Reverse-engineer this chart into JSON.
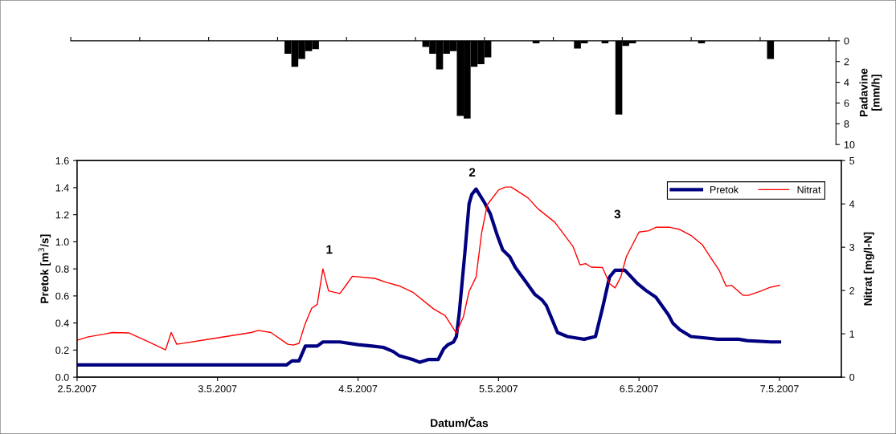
{
  "chart_data": [
    {
      "type": "bar",
      "ylabel": "Padavine\n[mm/h]",
      "color": "#000000",
      "tick_labels": "y",
      "grid": false,
      "legend": false,
      "categories": [
        null,
        null,
        null,
        null,
        null,
        null,
        null,
        null,
        null,
        null,
        null,
        null,
        null,
        null,
        null,
        null,
        null,
        null,
        null,
        null,
        null,
        null,
        null,
        null,
        null,
        null,
        null,
        null,
        null,
        null,
        null,
        null,
        null,
        null,
        null,
        null,
        null,
        null,
        null,
        null,
        null,
        null,
        null,
        null,
        null,
        null,
        null,
        null,
        null,
        null,
        null,
        null,
        null,
        null,
        null,
        null,
        null,
        null,
        null,
        null,
        null,
        null,
        null,
        null,
        null,
        null,
        null,
        null,
        null,
        null,
        null,
        null,
        null,
        null,
        null,
        null,
        null,
        null,
        null,
        null,
        null,
        null,
        null,
        null,
        null,
        null,
        null,
        null,
        null,
        null,
        null,
        null,
        null,
        null,
        null,
        null,
        null,
        null,
        null,
        null,
        null,
        null,
        null,
        null,
        null,
        null,
        null,
        null,
        null,
        null,
        null
      ],
      "values": [
        0,
        0,
        0,
        0,
        0,
        0,
        0,
        0,
        0,
        0,
        0,
        0,
        0,
        0,
        0,
        0,
        0,
        0,
        0,
        0,
        0,
        0,
        0,
        0,
        0,
        0,
        0,
        0,
        0,
        0,
        0,
        1.25,
        2.5,
        1.75,
        1.0,
        0.8,
        0,
        0,
        0,
        0,
        0,
        0,
        0,
        0,
        0,
        0,
        0,
        0,
        0,
        0,
        0,
        0.6,
        1.25,
        2.75,
        1.25,
        1.0,
        7.25,
        7.5,
        2.5,
        2.25,
        1.6,
        0,
        0,
        0,
        0,
        0,
        0,
        0.25,
        0,
        0,
        0,
        0,
        0,
        0.75,
        0.25,
        0,
        0,
        0.25,
        0,
        7.1,
        0.5,
        0.25,
        0,
        0,
        0,
        0,
        0,
        0,
        0,
        0,
        0,
        0.25,
        0,
        0,
        0,
        0,
        0,
        0,
        0,
        0,
        0,
        1.75,
        0,
        0,
        0,
        0,
        0,
        0,
        0,
        0,
        0
      ],
      "ylim": [
        10,
        0
      ],
      "yticks": [
        0,
        2,
        4,
        6,
        8,
        10
      ]
    },
    {
      "type": "line",
      "xlabel": "Datum/Čas",
      "ylabel": "Pretok [m$^{3}$/s]",
      "y2label": "Nitrat [mg/l-N]",
      "grid": false,
      "legend": "top right",
      "marker": "none",
      "line_style": "solid",
      "xlim": [
        "2007-05-02T00:00",
        "2007-05-07T10:34"
      ],
      "xticks": [
        {
          "value": "2007-05-02",
          "label": "2.5.2007"
        },
        {
          "value": "2007-05-03",
          "label": "3.5.2007"
        },
        {
          "value": "2007-05-04",
          "label": "4.5.2007"
        },
        {
          "value": "2007-05-05",
          "label": "5.5.2007"
        },
        {
          "value": "2007-05-06",
          "label": "6.5.2007"
        },
        {
          "value": "2007-05-07",
          "label": "7.5.2007"
        }
      ],
      "ylim": [
        0,
        1.6
      ],
      "yticks": [
        {
          "value": 0,
          "label": "0.0"
        },
        {
          "value": 0.2,
          "label": "0.2"
        },
        {
          "value": 0.4,
          "label": "0.4"
        },
        {
          "value": 0.6,
          "label": "0.6"
        },
        {
          "value": 0.8,
          "label": "0.8"
        },
        {
          "value": 1.0,
          "label": "1.0"
        },
        {
          "value": 1.2,
          "label": "1.2"
        },
        {
          "value": 1.4,
          "label": "1.4"
        },
        {
          "value": 1.6,
          "label": "1.6"
        }
      ],
      "y2lim": [
        0,
        5
      ],
      "y2ticks": [
        0,
        1,
        2,
        3,
        4,
        5
      ],
      "series": [
        {
          "name": "Pretok",
          "color": "#000080",
          "x": [
            "2007-05-02T00:00",
            "2007-05-03T11:46",
            "2007-05-03T12:43",
            "2007-05-03T13:55",
            "2007-05-03T15:00",
            "2007-05-03T17:02",
            "2007-05-03T18:00",
            "2007-05-03T20:53",
            "2007-05-04T00:00",
            "2007-05-04T02:24",
            "2007-05-04T04:19",
            "2007-05-04T06:00",
            "2007-05-04T06:58",
            "2007-05-04T09:22",
            "2007-05-04T10:34",
            "2007-05-04T12:00",
            "2007-05-04T13:12",
            "2007-05-04T13:41",
            "2007-05-04T14:38",
            "2007-05-04T15:22",
            "2007-05-04T16:19",
            "2007-05-04T16:48",
            "2007-05-04T17:17",
            "2007-05-04T18:14",
            "2007-05-04T18:58",
            "2007-05-04T19:26",
            "2007-05-04T20:10",
            "2007-05-04T21:36",
            "2007-05-04T22:34",
            "2007-05-04T23:46",
            "2007-05-05T00:43",
            "2007-05-05T01:55",
            "2007-05-05T02:53",
            "2007-05-05T04:34",
            "2007-05-05T06:14",
            "2007-05-05T07:26",
            "2007-05-05T08:10",
            "2007-05-05T10:05",
            "2007-05-05T11:46",
            "2007-05-05T13:12",
            "2007-05-05T14:38",
            "2007-05-05T16:34",
            "2007-05-05T17:46",
            "2007-05-05T18:58",
            "2007-05-05T19:55",
            "2007-05-05T21:36",
            "2007-05-05T23:46",
            "2007-05-06T01:12",
            "2007-05-06T02:53",
            "2007-05-06T05:02",
            "2007-05-06T05:46",
            "2007-05-06T06:58",
            "2007-05-06T08:53",
            "2007-05-06T11:17",
            "2007-05-06T13:26",
            "2007-05-06T17:02",
            "2007-05-06T18:29",
            "2007-05-06T22:34",
            "2007-05-07T00:00"
          ],
          "values": [
            0.09,
            0.09,
            0.12,
            0.12,
            0.23,
            0.23,
            0.26,
            0.26,
            0.24,
            0.23,
            0.22,
            0.19,
            0.16,
            0.13,
            0.11,
            0.13,
            0.13,
            0.13,
            0.21,
            0.24,
            0.26,
            0.3,
            0.47,
            0.91,
            1.28,
            1.35,
            1.39,
            1.29,
            1.21,
            1.05,
            0.94,
            0.89,
            0.81,
            0.71,
            0.61,
            0.57,
            0.53,
            0.33,
            0.3,
            0.29,
            0.28,
            0.3,
            0.51,
            0.74,
            0.79,
            0.79,
            0.69,
            0.64,
            0.59,
            0.46,
            0.4,
            0.35,
            0.3,
            0.29,
            0.28,
            0.28,
            0.27,
            0.26,
            0.26
          ]
        },
        {
          "name": "Nitrat",
          "color": "#ff0000",
          "axis": "y2",
          "x": [
            "2007-05-02T00:00",
            "2007-05-02T01:55",
            "2007-05-02T04:34",
            "2007-05-02T06:00",
            "2007-05-02T08:53",
            "2007-05-02T12:00",
            "2007-05-02T15:07",
            "2007-05-02T16:05",
            "2007-05-02T17:02",
            "2007-05-03T05:46",
            "2007-05-03T06:58",
            "2007-05-03T09:07",
            "2007-05-03T12:00",
            "2007-05-03T12:58",
            "2007-05-03T13:55",
            "2007-05-03T14:53",
            "2007-05-03T16:05",
            "2007-05-03T17:02",
            "2007-05-03T18:00",
            "2007-05-03T18:58",
            "2007-05-03T20:53",
            "2007-05-03T21:50",
            "2007-05-03T23:02",
            "2007-05-04T02:53",
            "2007-05-04T04:48",
            "2007-05-04T06:58",
            "2007-05-04T09:22",
            "2007-05-04T12:58",
            "2007-05-04T14:53",
            "2007-05-04T15:36",
            "2007-05-04T16:48",
            "2007-05-04T18:00",
            "2007-05-04T18:58",
            "2007-05-04T20:10",
            "2007-05-04T21:07",
            "2007-05-04T22:05",
            "2007-05-05T00:00",
            "2007-05-05T01:12",
            "2007-05-05T02:10",
            "2007-05-05T05:02",
            "2007-05-05T06:43",
            "2007-05-05T09:36",
            "2007-05-05T12:43",
            "2007-05-05T13:55",
            "2007-05-05T14:53",
            "2007-05-05T15:50",
            "2007-05-05T17:46",
            "2007-05-05T18:58",
            "2007-05-05T19:55",
            "2007-05-05T20:53",
            "2007-05-05T21:50",
            "2007-05-06T00:00",
            "2007-05-06T01:41",
            "2007-05-06T02:53",
            "2007-05-06T05:17",
            "2007-05-06T06:58",
            "2007-05-06T08:53",
            "2007-05-06T10:48",
            "2007-05-06T12:00",
            "2007-05-06T13:41",
            "2007-05-06T14:53",
            "2007-05-06T15:50",
            "2007-05-06T17:46",
            "2007-05-06T18:43",
            "2007-05-06T20:53",
            "2007-05-06T22:19",
            "2007-05-07T00:00"
          ],
          "values": [
            0.85,
            0.93,
            0.99,
            1.03,
            1.02,
            0.83,
            0.63,
            1.03,
            0.76,
            1.03,
            1.08,
            1.03,
            0.76,
            0.74,
            0.78,
            1.2,
            1.59,
            1.68,
            2.5,
            1.99,
            1.93,
            2.1,
            2.33,
            2.28,
            2.19,
            2.11,
            1.96,
            1.57,
            1.42,
            1.27,
            1.02,
            1.39,
            1.98,
            2.31,
            3.33,
            3.98,
            4.32,
            4.39,
            4.39,
            4.14,
            3.89,
            3.58,
            3.02,
            2.59,
            2.62,
            2.54,
            2.53,
            2.16,
            2.06,
            2.31,
            2.78,
            3.35,
            3.38,
            3.46,
            3.46,
            3.41,
            3.27,
            3.06,
            2.81,
            2.47,
            2.1,
            2.12,
            1.89,
            1.89,
            1.99,
            2.07,
            2.12
          ]
        }
      ],
      "annotations": [
        "1",
        "2",
        "3"
      ]
    }
  ]
}
